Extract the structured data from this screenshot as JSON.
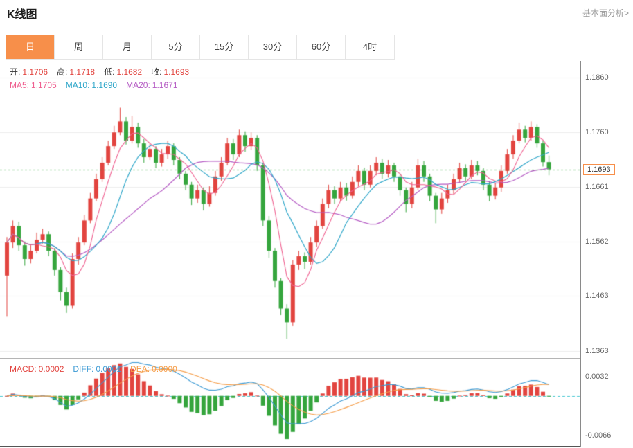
{
  "header": {
    "title": "K线图",
    "link": "基本面分析>"
  },
  "theme": {
    "accent": "#f78f4a"
  },
  "tabs": {
    "items": [
      {
        "key": "day",
        "label": "日",
        "selected": true
      },
      {
        "key": "week",
        "label": "周",
        "selected": false
      },
      {
        "key": "month",
        "label": "月",
        "selected": false
      },
      {
        "key": "m5",
        "label": "5分",
        "selected": false
      },
      {
        "key": "m15",
        "label": "15分",
        "selected": false
      },
      {
        "key": "m30",
        "label": "30分",
        "selected": false
      },
      {
        "key": "m60",
        "label": "60分",
        "selected": false
      },
      {
        "key": "h4",
        "label": "4时",
        "selected": false
      }
    ]
  },
  "legend": {
    "ohlc": [
      {
        "name": "ohlc-open",
        "label": "开:",
        "value": "1.1706",
        "color": "#e2443f",
        "label_color": "#333333"
      },
      {
        "name": "ohlc-high",
        "label": "高:",
        "value": "1.1718",
        "color": "#e2443f",
        "label_color": "#333333"
      },
      {
        "name": "ohlc-low",
        "label": "低:",
        "value": "1.1682",
        "color": "#e2443f",
        "label_color": "#333333"
      },
      {
        "name": "ohlc-close",
        "label": "收:",
        "value": "1.1693",
        "color": "#e2443f",
        "label_color": "#333333"
      }
    ],
    "ma": [
      {
        "name": "ma5-value",
        "label": "MA5:",
        "value": "1.1705",
        "color": "#ef5f8f"
      },
      {
        "name": "ma10-value",
        "label": "MA10:",
        "value": "1.1690",
        "color": "#2ea6c9"
      },
      {
        "name": "ma20-value",
        "label": "MA20:",
        "value": "1.1671",
        "color": "#b55bc4"
      }
    ],
    "macd": [
      {
        "name": "macd-value",
        "label": "MACD:",
        "value": "0.0002",
        "color": "#e2443f"
      },
      {
        "name": "diff-value",
        "label": "DIFF:",
        "value": "0.0001",
        "color": "#3c9ad4"
      },
      {
        "name": "dea-value",
        "label": "DEA:",
        "value": "0.0000",
        "color": "#f59b45"
      }
    ]
  },
  "chart_data": {
    "type": "candlestick",
    "title": "K线图",
    "indicator": "MACD",
    "price_axis": {
      "ticks": [
        "1.1860",
        "1.1760",
        "1.1661",
        "1.1562",
        "1.1463",
        "1.1363"
      ],
      "range": [
        1.135,
        1.189
      ],
      "current_price": "1.1693"
    },
    "macd_axis": {
      "ticks": [
        "0.0032",
        "-0.0066"
      ],
      "range": [
        -0.0085,
        0.006
      ]
    },
    "colors": {
      "up": "#e2443f",
      "down": "#35a53d",
      "ma5": "#ef5f8f",
      "ma10": "#2ea6c9",
      "ma20": "#b55bc4",
      "diff": "#3c9ad4",
      "dea": "#f59b45",
      "current_line": "#33a63c",
      "zero_line": "#46c8d2"
    },
    "candles": [
      [
        1.15,
        1.157,
        1.1425,
        1.156
      ],
      [
        1.156,
        1.16,
        1.155,
        1.159
      ],
      [
        1.159,
        1.1598,
        1.1545,
        1.1555
      ],
      [
        1.1555,
        1.1562,
        1.1518,
        1.153
      ],
      [
        1.153,
        1.1555,
        1.1522,
        1.1545
      ],
      [
        1.1545,
        1.1578,
        1.154,
        1.1565
      ],
      [
        1.1565,
        1.1585,
        1.1558,
        1.1575
      ],
      [
        1.1575,
        1.158,
        1.1535,
        1.1545
      ],
      [
        1.1545,
        1.155,
        1.15,
        1.151
      ],
      [
        1.151,
        1.1515,
        1.1455,
        1.147
      ],
      [
        1.147,
        1.1478,
        1.1432,
        1.1445
      ],
      [
        1.1445,
        1.154,
        1.144,
        1.153
      ],
      [
        1.153,
        1.157,
        1.152,
        1.156
      ],
      [
        1.156,
        1.161,
        1.1555,
        1.16
      ],
      [
        1.16,
        1.165,
        1.1595,
        1.164
      ],
      [
        1.164,
        1.1685,
        1.1635,
        1.1675
      ],
      [
        1.1675,
        1.1715,
        1.167,
        1.1705
      ],
      [
        1.1705,
        1.1745,
        1.17,
        1.1735
      ],
      [
        1.1735,
        1.1772,
        1.173,
        1.176
      ],
      [
        1.176,
        1.1805,
        1.1755,
        1.178
      ],
      [
        1.178,
        1.1788,
        1.1738,
        1.1745
      ],
      [
        1.1745,
        1.179,
        1.174,
        1.177
      ],
      [
        1.177,
        1.1778,
        1.1732,
        1.174
      ],
      [
        1.174,
        1.1748,
        1.1705,
        1.1715
      ],
      [
        1.1715,
        1.1742,
        1.171,
        1.173
      ],
      [
        1.173,
        1.1735,
        1.1695,
        1.1705
      ],
      [
        1.1705,
        1.173,
        1.1698,
        1.172
      ],
      [
        1.172,
        1.1745,
        1.1712,
        1.1735
      ],
      [
        1.1735,
        1.174,
        1.17,
        1.171
      ],
      [
        1.171,
        1.1715,
        1.1675,
        1.1685
      ],
      [
        1.1685,
        1.169,
        1.1655,
        1.1665
      ],
      [
        1.1665,
        1.167,
        1.1628,
        1.164
      ],
      [
        1.164,
        1.1665,
        1.1632,
        1.1655
      ],
      [
        1.1655,
        1.166,
        1.1618,
        1.163
      ],
      [
        1.163,
        1.1662,
        1.1625,
        1.165
      ],
      [
        1.165,
        1.169,
        1.1645,
        1.168
      ],
      [
        1.168,
        1.1715,
        1.1672,
        1.1705
      ],
      [
        1.1705,
        1.175,
        1.17,
        1.174
      ],
      [
        1.174,
        1.1748,
        1.171,
        1.172
      ],
      [
        1.172,
        1.1765,
        1.1715,
        1.1755
      ],
      [
        1.1755,
        1.1762,
        1.1725,
        1.1735
      ],
      [
        1.1735,
        1.176,
        1.1728,
        1.175
      ],
      [
        1.175,
        1.1755,
        1.169,
        1.17
      ],
      [
        1.17,
        1.1705,
        1.159,
        1.16
      ],
      [
        1.16,
        1.1608,
        1.1532,
        1.1545
      ],
      [
        1.1545,
        1.155,
        1.1478,
        1.149
      ],
      [
        1.149,
        1.1495,
        1.1428,
        1.144
      ],
      [
        1.144,
        1.1448,
        1.1385,
        1.1415
      ],
      [
        1.1415,
        1.1528,
        1.1408,
        1.152
      ],
      [
        1.152,
        1.1545,
        1.151,
        1.1535
      ],
      [
        1.1535,
        1.1542,
        1.1512,
        1.1525
      ],
      [
        1.1525,
        1.157,
        1.152,
        1.156
      ],
      [
        1.156,
        1.16,
        1.1552,
        1.159
      ],
      [
        1.159,
        1.164,
        1.1585,
        1.163
      ],
      [
        1.163,
        1.1665,
        1.1622,
        1.1655
      ],
      [
        1.1655,
        1.1662,
        1.163,
        1.164
      ],
      [
        1.164,
        1.167,
        1.1635,
        1.166
      ],
      [
        1.166,
        1.1668,
        1.1636,
        1.1645
      ],
      [
        1.1645,
        1.168,
        1.164,
        1.167
      ],
      [
        1.167,
        1.17,
        1.1662,
        1.169
      ],
      [
        1.169,
        1.1696,
        1.1655,
        1.1665
      ],
      [
        1.1665,
        1.17,
        1.166,
        1.169
      ],
      [
        1.169,
        1.1715,
        1.1682,
        1.1705
      ],
      [
        1.1705,
        1.1712,
        1.1676,
        1.1685
      ],
      [
        1.1685,
        1.171,
        1.1678,
        1.17
      ],
      [
        1.17,
        1.1705,
        1.167,
        1.168
      ],
      [
        1.168,
        1.1685,
        1.1645,
        1.1655
      ],
      [
        1.1655,
        1.166,
        1.1615,
        1.163
      ],
      [
        1.163,
        1.167,
        1.1622,
        1.166
      ],
      [
        1.166,
        1.1712,
        1.1655,
        1.17
      ],
      [
        1.17,
        1.1708,
        1.167,
        1.168
      ],
      [
        1.168,
        1.1685,
        1.1635,
        1.1645
      ],
      [
        1.1645,
        1.165,
        1.1595,
        1.162
      ],
      [
        1.162,
        1.165,
        1.1612,
        1.164
      ],
      [
        1.164,
        1.1665,
        1.1632,
        1.1655
      ],
      [
        1.1655,
        1.1685,
        1.1648,
        1.1675
      ],
      [
        1.1675,
        1.1705,
        1.1668,
        1.1695
      ],
      [
        1.1695,
        1.1702,
        1.1672,
        1.168
      ],
      [
        1.168,
        1.171,
        1.1675,
        1.17
      ],
      [
        1.17,
        1.1708,
        1.1682,
        1.169
      ],
      [
        1.169,
        1.1695,
        1.1655,
        1.1665
      ],
      [
        1.1665,
        1.1672,
        1.1635,
        1.1645
      ],
      [
        1.1645,
        1.1668,
        1.1638,
        1.166
      ],
      [
        1.166,
        1.17,
        1.1652,
        1.169
      ],
      [
        1.169,
        1.173,
        1.1685,
        1.172
      ],
      [
        1.172,
        1.1755,
        1.1712,
        1.1745
      ],
      [
        1.1745,
        1.1778,
        1.174,
        1.1765
      ],
      [
        1.1765,
        1.1772,
        1.1742,
        1.175
      ],
      [
        1.175,
        1.178,
        1.1745,
        1.177
      ],
      [
        1.177,
        1.1775,
        1.1732,
        1.174
      ],
      [
        1.174,
        1.1745,
        1.1698,
        1.1706
      ],
      [
        1.1706,
        1.1718,
        1.1682,
        1.1693
      ]
    ]
  }
}
